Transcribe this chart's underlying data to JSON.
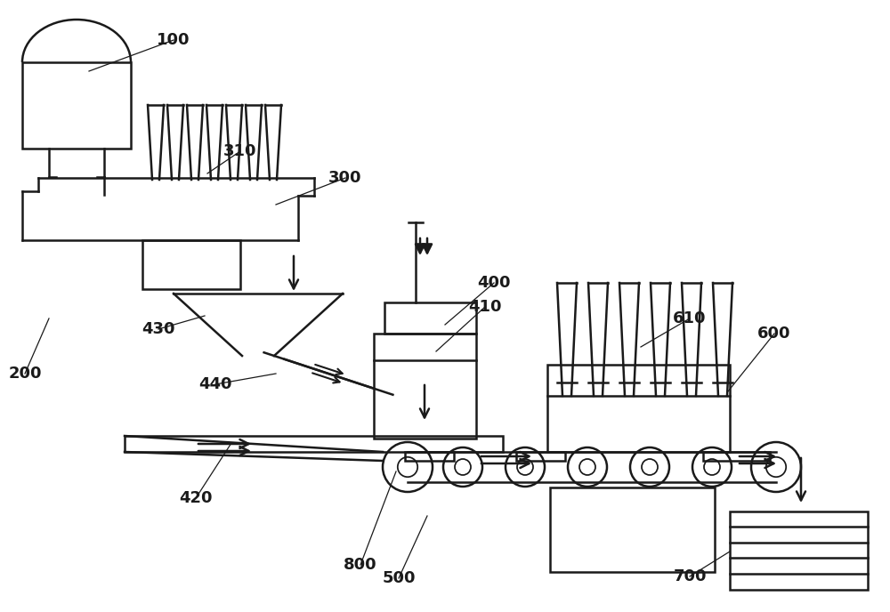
{
  "bg_color": "#ffffff",
  "line_color": "#1a1a1a",
  "lw": 1.8,
  "fig_width": 10.0,
  "fig_height": 6.88
}
